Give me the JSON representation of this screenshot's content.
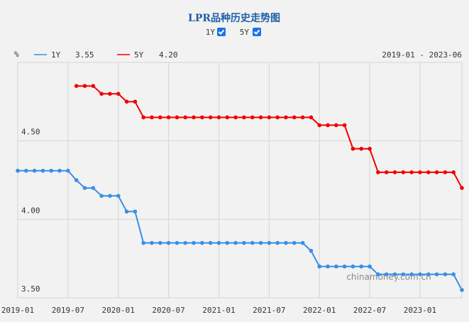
{
  "chart_data": {
    "type": "line",
    "title": "LPR品种历史走势图",
    "y_unit": "%",
    "range_label": "2019-01 - 2023-06",
    "watermark": "chinamoney.com.cn",
    "categories": [
      "2019-01",
      null,
      null,
      null,
      null,
      null,
      "2019-07",
      null,
      null,
      null,
      null,
      null,
      "2020-01",
      null,
      null,
      null,
      null,
      null,
      "2020-07",
      null,
      null,
      null,
      null,
      null,
      "2021-01",
      null,
      null,
      null,
      null,
      null,
      "2021-07",
      null,
      null,
      null,
      null,
      null,
      "2022-01",
      null,
      null,
      null,
      null,
      null,
      "2022-07",
      null,
      null,
      null,
      null,
      null,
      "2023-01",
      null,
      null,
      null,
      null,
      null
    ],
    "ylim": [
      3.5,
      5.0
    ],
    "yticks": [
      {
        "value": 3.5,
        "label": "3.50"
      },
      {
        "value": 4.0,
        "label": "4.00"
      },
      {
        "value": 4.5,
        "label": "4.50"
      }
    ],
    "grid": true,
    "series": [
      {
        "name": "1Y",
        "color": "#3a8ee6",
        "latest": "3.55",
        "values": [
          4.31,
          4.31,
          4.31,
          4.31,
          4.31,
          4.31,
          4.31,
          4.25,
          4.2,
          4.2,
          4.15,
          4.15,
          4.15,
          4.05,
          4.05,
          3.85,
          3.85,
          3.85,
          3.85,
          3.85,
          3.85,
          3.85,
          3.85,
          3.85,
          3.85,
          3.85,
          3.85,
          3.85,
          3.85,
          3.85,
          3.85,
          3.85,
          3.85,
          3.85,
          3.85,
          3.8,
          3.7,
          3.7,
          3.7,
          3.7,
          3.7,
          3.7,
          3.7,
          3.65,
          3.65,
          3.65,
          3.65,
          3.65,
          3.65,
          3.65,
          3.65,
          3.65,
          3.65,
          3.55
        ]
      },
      {
        "name": "5Y",
        "color": "#f20000",
        "latest": "4.20",
        "values": [
          null,
          null,
          null,
          null,
          null,
          null,
          null,
          4.85,
          4.85,
          4.85,
          4.8,
          4.8,
          4.8,
          4.75,
          4.75,
          4.65,
          4.65,
          4.65,
          4.65,
          4.65,
          4.65,
          4.65,
          4.65,
          4.65,
          4.65,
          4.65,
          4.65,
          4.65,
          4.65,
          4.65,
          4.65,
          4.65,
          4.65,
          4.65,
          4.65,
          4.65,
          4.6,
          4.6,
          4.6,
          4.6,
          4.45,
          4.45,
          4.45,
          4.3,
          4.3,
          4.3,
          4.3,
          4.3,
          4.3,
          4.3,
          4.3,
          4.3,
          4.3,
          4.2
        ]
      }
    ]
  }
}
